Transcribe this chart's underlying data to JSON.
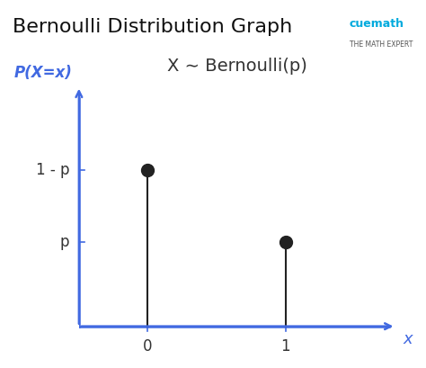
{
  "title": "Bernoulli Distribution Graph",
  "subtitle": "X ∼ Bernoulli(p)",
  "xlabel": "x",
  "ylabel": "P(X=x)",
  "background_color": "#ffffff",
  "axis_color": "#4169e1",
  "bar_color": "#222222",
  "x_values": [
    0,
    1
  ],
  "y_values": [
    0.65,
    0.35
  ],
  "y_tick_labels": [
    "1 - p",
    "p"
  ],
  "y_tick_positions": [
    0.65,
    0.35
  ],
  "x_tick_labels": [
    "0",
    "1"
  ],
  "x_tick_positions": [
    0,
    1
  ],
  "xlim": [
    -0.5,
    1.8
  ],
  "ylim": [
    -0.05,
    1.0
  ],
  "title_fontsize": 16,
  "subtitle_fontsize": 14,
  "axis_label_fontsize": 12,
  "tick_label_fontsize": 12,
  "marker_size": 10,
  "line_width": 1.5
}
